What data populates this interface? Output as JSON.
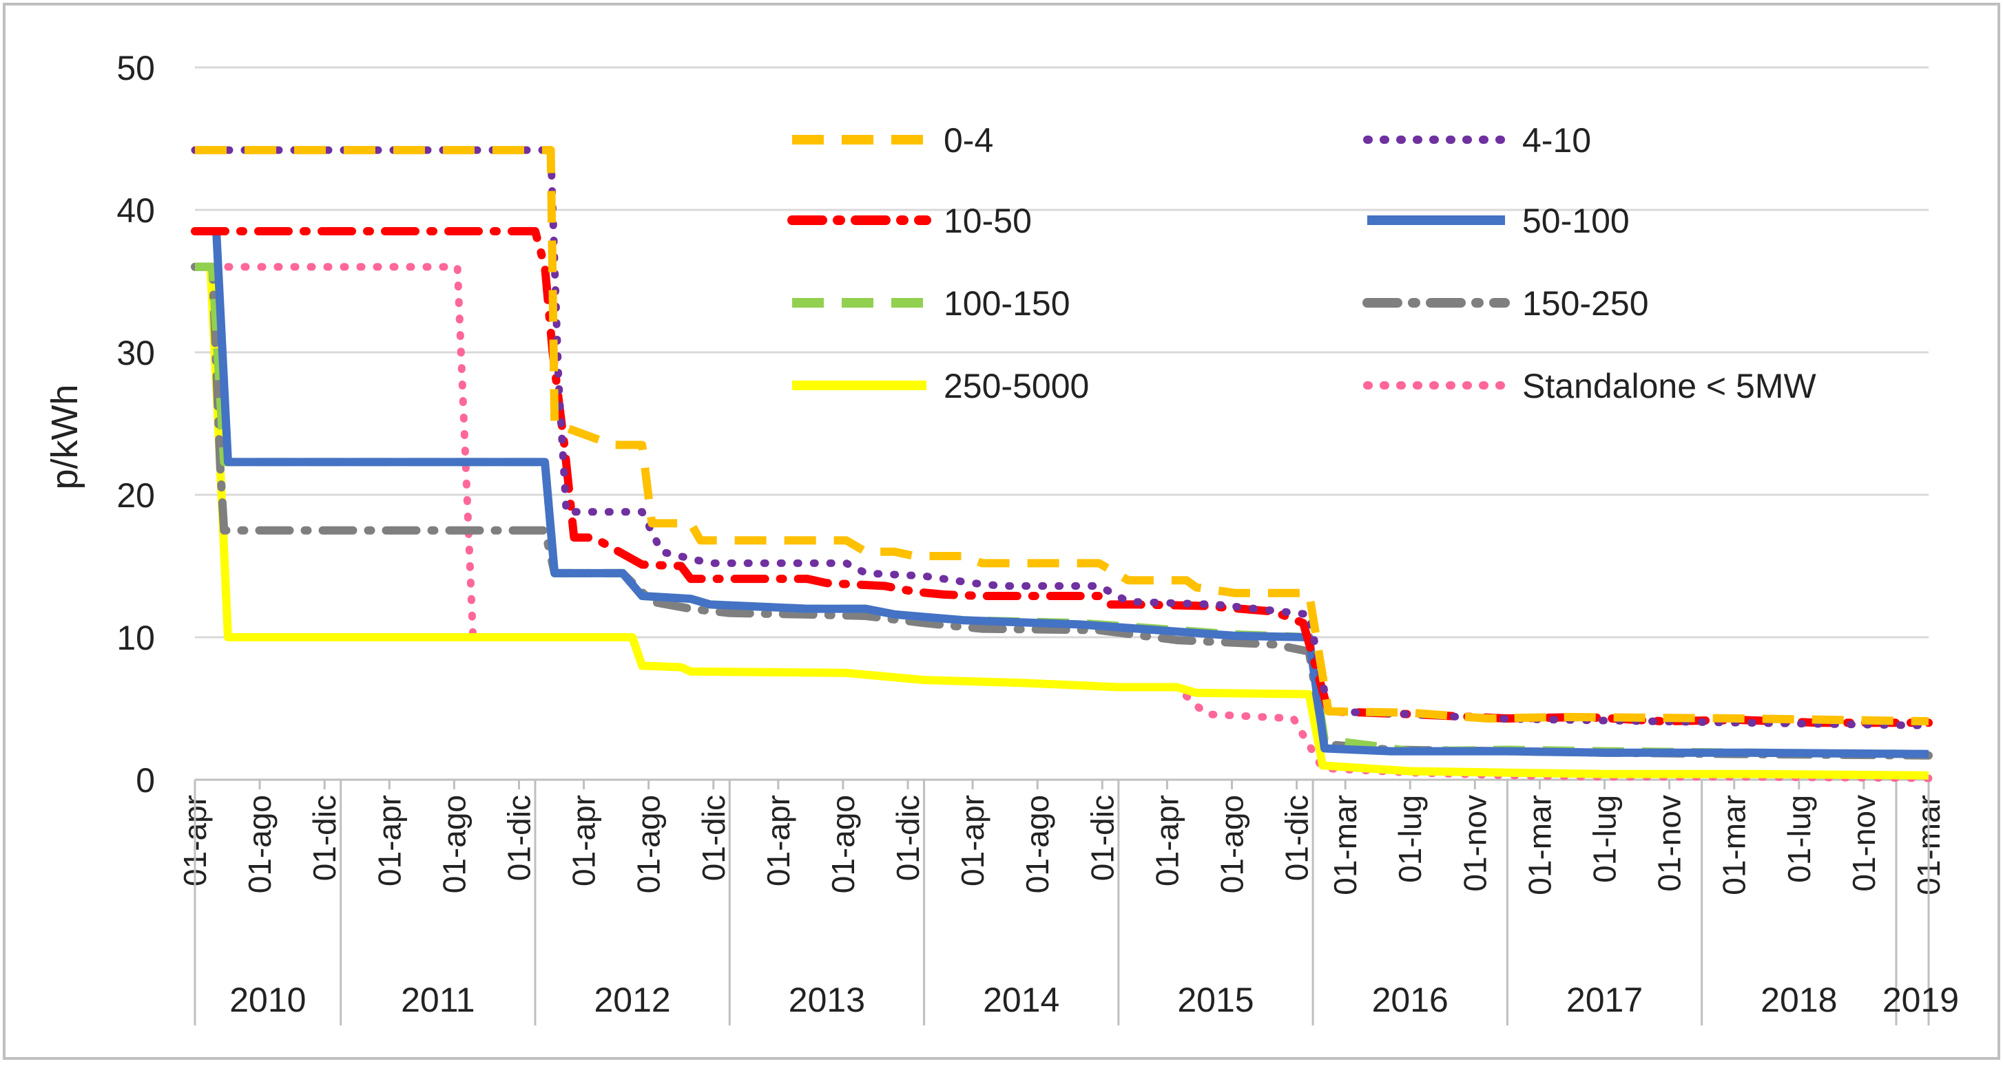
{
  "chart_data": {
    "type": "line",
    "title": "",
    "ylabel": "p/kWh",
    "xlabel": "",
    "ylim": [
      0,
      50
    ],
    "yticks": [
      0,
      10,
      20,
      30,
      40,
      50
    ],
    "grid": true,
    "legend_position": "top-right, two columns",
    "x_time_range": [
      2010.25,
      2019.1667
    ],
    "x_tick_labels": [
      {
        "label": "01-apr",
        "t": 2010.25
      },
      {
        "label": "01-ago",
        "t": 2010.5833
      },
      {
        "label": "01-dic",
        "t": 2010.9167
      },
      {
        "label": "01-apr",
        "t": 2011.25
      },
      {
        "label": "01-ago",
        "t": 2011.5833
      },
      {
        "label": "01-dic",
        "t": 2011.9167
      },
      {
        "label": "01-apr",
        "t": 2012.25
      },
      {
        "label": "01-ago",
        "t": 2012.5833
      },
      {
        "label": "01-dic",
        "t": 2012.9167
      },
      {
        "label": "01-apr",
        "t": 2013.25
      },
      {
        "label": "01-ago",
        "t": 2013.5833
      },
      {
        "label": "01-dic",
        "t": 2013.9167
      },
      {
        "label": "01-apr",
        "t": 2014.25
      },
      {
        "label": "01-ago",
        "t": 2014.5833
      },
      {
        "label": "01-dic",
        "t": 2014.9167
      },
      {
        "label": "01-apr",
        "t": 2015.25
      },
      {
        "label": "01-ago",
        "t": 2015.5833
      },
      {
        "label": "01-dic",
        "t": 2015.9167
      },
      {
        "label": "01-mar",
        "t": 2016.1667
      },
      {
        "label": "01-lug",
        "t": 2016.5
      },
      {
        "label": "01-nov",
        "t": 2016.8333
      },
      {
        "label": "01-mar",
        "t": 2017.1667
      },
      {
        "label": "01-lug",
        "t": 2017.5
      },
      {
        "label": "01-nov",
        "t": 2017.8333
      },
      {
        "label": "01-mar",
        "t": 2018.1667
      },
      {
        "label": "01-lug",
        "t": 2018.5
      },
      {
        "label": "01-nov",
        "t": 2018.8333
      },
      {
        "label": "01-mar",
        "t": 2019.1667
      }
    ],
    "year_groups": [
      {
        "label": "2010",
        "start": 2010.25,
        "end": 2011.0
      },
      {
        "label": "2011",
        "start": 2011.0,
        "end": 2012.0
      },
      {
        "label": "2012",
        "start": 2012.0,
        "end": 2013.0
      },
      {
        "label": "2013",
        "start": 2013.0,
        "end": 2014.0
      },
      {
        "label": "2014",
        "start": 2014.0,
        "end": 2015.0
      },
      {
        "label": "2015",
        "start": 2015.0,
        "end": 2016.0
      },
      {
        "label": "2016",
        "start": 2016.0,
        "end": 2017.0
      },
      {
        "label": "2017",
        "start": 2017.0,
        "end": 2018.0
      },
      {
        "label": "2018",
        "start": 2018.0,
        "end": 2019.0
      },
      {
        "label": "2019",
        "start": 2019.0,
        "end": 2019.1667
      }
    ],
    "series": [
      {
        "name": "0-4",
        "color": "#FFC000",
        "style": "long-dash",
        "points": [
          [
            2010.25,
            44.2
          ],
          [
            2012.08,
            44.2
          ],
          [
            2012.1,
            25.0
          ],
          [
            2012.4,
            23.5
          ],
          [
            2012.55,
            23.5
          ],
          [
            2012.6,
            18.0
          ],
          [
            2012.8,
            18.0
          ],
          [
            2012.85,
            16.8
          ],
          [
            2013.6,
            16.8
          ],
          [
            2013.7,
            16.0
          ],
          [
            2013.85,
            16.0
          ],
          [
            2013.95,
            15.7
          ],
          [
            2014.2,
            15.7
          ],
          [
            2014.3,
            15.2
          ],
          [
            2014.9,
            15.2
          ],
          [
            2015.05,
            14.0
          ],
          [
            2015.35,
            14.0
          ],
          [
            2015.4,
            13.5
          ],
          [
            2015.6,
            13.1
          ],
          [
            2015.98,
            13.1
          ],
          [
            2016.08,
            4.8
          ],
          [
            2016.5,
            4.7
          ],
          [
            2016.9,
            4.3
          ],
          [
            2017.3,
            4.4
          ],
          [
            2018.2,
            4.3
          ],
          [
            2019.1667,
            4.1
          ]
        ]
      },
      {
        "name": "4-10",
        "color": "#7030A0",
        "style": "dotted",
        "points": [
          [
            2010.25,
            44.2
          ],
          [
            2012.08,
            44.2
          ],
          [
            2012.12,
            28.0
          ],
          [
            2012.16,
            18.8
          ],
          [
            2012.55,
            18.8
          ],
          [
            2012.65,
            16.0
          ],
          [
            2012.9,
            15.2
          ],
          [
            2013.6,
            15.2
          ],
          [
            2013.7,
            14.5
          ],
          [
            2014.0,
            14.3
          ],
          [
            2014.25,
            13.8
          ],
          [
            2014.4,
            13.6
          ],
          [
            2014.9,
            13.6
          ],
          [
            2015.05,
            12.5
          ],
          [
            2015.5,
            12.3
          ],
          [
            2015.98,
            11.6
          ],
          [
            2016.08,
            4.8
          ],
          [
            2016.5,
            4.6
          ],
          [
            2016.9,
            4.3
          ],
          [
            2017.3,
            4.2
          ],
          [
            2018.2,
            4.0
          ],
          [
            2019.1667,
            3.8
          ]
        ]
      },
      {
        "name": "10-50",
        "color": "#FF0000",
        "style": "dash-dot",
        "points": [
          [
            2010.25,
            38.5
          ],
          [
            2012.0,
            38.5
          ],
          [
            2012.05,
            36.0
          ],
          [
            2012.09,
            30.0
          ],
          [
            2012.15,
            23.5
          ],
          [
            2012.2,
            17.0
          ],
          [
            2012.3,
            17.0
          ],
          [
            2012.55,
            15.1
          ],
          [
            2012.75,
            15.0
          ],
          [
            2012.8,
            14.1
          ],
          [
            2013.4,
            14.1
          ],
          [
            2013.5,
            13.8
          ],
          [
            2013.8,
            13.6
          ],
          [
            2013.95,
            13.2
          ],
          [
            2014.1,
            13.0
          ],
          [
            2014.3,
            12.9
          ],
          [
            2014.9,
            12.9
          ],
          [
            2014.96,
            12.3
          ],
          [
            2015.1,
            12.3
          ],
          [
            2015.45,
            12.2
          ],
          [
            2015.8,
            11.8
          ],
          [
            2015.95,
            11.0
          ],
          [
            2016.08,
            4.8
          ],
          [
            2016.5,
            4.6
          ],
          [
            2017.0,
            4.3
          ],
          [
            2017.4,
            4.4
          ],
          [
            2017.8,
            4.1
          ],
          [
            2018.2,
            4.2
          ],
          [
            2018.6,
            4.0
          ],
          [
            2019.1667,
            4.0
          ]
        ]
      },
      {
        "name": "50-100",
        "color": "#4472C4",
        "style": "solid",
        "points": [
          [
            2010.25,
            38.5
          ],
          [
            2010.36,
            38.5
          ],
          [
            2010.42,
            22.3
          ],
          [
            2012.05,
            22.3
          ],
          [
            2012.1,
            14.5
          ],
          [
            2012.45,
            14.5
          ],
          [
            2012.55,
            12.9
          ],
          [
            2012.8,
            12.7
          ],
          [
            2012.9,
            12.3
          ],
          [
            2013.4,
            12.0
          ],
          [
            2013.7,
            12.0
          ],
          [
            2013.85,
            11.6
          ],
          [
            2014.2,
            11.2
          ],
          [
            2014.8,
            10.9
          ],
          [
            2015.3,
            10.4
          ],
          [
            2015.6,
            10.1
          ],
          [
            2015.98,
            10.0
          ],
          [
            2016.06,
            2.2
          ],
          [
            2016.4,
            2.0
          ],
          [
            2017.0,
            2.0
          ],
          [
            2017.5,
            1.9
          ],
          [
            2018.2,
            1.9
          ],
          [
            2019.1667,
            1.8
          ]
        ]
      },
      {
        "name": "100-150",
        "color": "#92D050",
        "style": "long-dash",
        "points": [
          [
            2010.25,
            36.0
          ],
          [
            2010.34,
            36.0
          ],
          [
            2010.4,
            22.3
          ],
          [
            2012.05,
            22.3
          ],
          [
            2012.1,
            14.5
          ],
          [
            2012.45,
            14.5
          ],
          [
            2012.55,
            12.9
          ],
          [
            2012.8,
            12.7
          ],
          [
            2012.9,
            12.3
          ],
          [
            2013.4,
            12.0
          ],
          [
            2013.7,
            12.0
          ],
          [
            2013.85,
            11.6
          ],
          [
            2014.2,
            11.2
          ],
          [
            2014.8,
            11.0
          ],
          [
            2015.3,
            10.5
          ],
          [
            2015.6,
            10.2
          ],
          [
            2015.98,
            10.0
          ],
          [
            2016.06,
            2.8
          ],
          [
            2016.3,
            2.4
          ],
          [
            2016.5,
            2.0
          ],
          [
            2017.0,
            2.1
          ],
          [
            2017.5,
            2.0
          ],
          [
            2018.2,
            1.9
          ],
          [
            2019.1667,
            1.8
          ]
        ]
      },
      {
        "name": "150-250",
        "color": "#7F7F7F",
        "style": "dash-dot",
        "points": [
          [
            2010.25,
            36.0
          ],
          [
            2010.34,
            36.0
          ],
          [
            2010.38,
            22.0
          ],
          [
            2010.4,
            17.5
          ],
          [
            2012.05,
            17.5
          ],
          [
            2012.1,
            14.5
          ],
          [
            2012.45,
            14.5
          ],
          [
            2012.6,
            12.5
          ],
          [
            2012.8,
            12.0
          ],
          [
            2013.0,
            11.7
          ],
          [
            2013.4,
            11.6
          ],
          [
            2013.7,
            11.5
          ],
          [
            2014.0,
            11.0
          ],
          [
            2014.3,
            10.6
          ],
          [
            2014.9,
            10.5
          ],
          [
            2015.3,
            9.8
          ],
          [
            2015.8,
            9.5
          ],
          [
            2015.98,
            9.0
          ],
          [
            2016.06,
            2.5
          ],
          [
            2016.4,
            2.1
          ],
          [
            2017.0,
            2.0
          ],
          [
            2017.5,
            1.9
          ],
          [
            2018.2,
            1.8
          ],
          [
            2019.1667,
            1.7
          ]
        ]
      },
      {
        "name": "250-5000",
        "color": "#FFFF00",
        "style": "solid",
        "points": [
          [
            2010.25,
            36.0
          ],
          [
            2010.33,
            36.0
          ],
          [
            2010.38,
            22.0
          ],
          [
            2010.42,
            10.0
          ],
          [
            2012.5,
            10.0
          ],
          [
            2012.55,
            8.0
          ],
          [
            2012.75,
            7.9
          ],
          [
            2012.8,
            7.6
          ],
          [
            2013.6,
            7.5
          ],
          [
            2014.0,
            7.0
          ],
          [
            2014.5,
            6.8
          ],
          [
            2015.0,
            6.5
          ],
          [
            2015.3,
            6.5
          ],
          [
            2015.4,
            6.1
          ],
          [
            2015.98,
            6.0
          ],
          [
            2016.05,
            1.0
          ],
          [
            2016.5,
            0.6
          ],
          [
            2017.0,
            0.5
          ],
          [
            2017.5,
            0.4
          ],
          [
            2018.2,
            0.4
          ],
          [
            2019.1667,
            0.3
          ]
        ]
      },
      {
        "name": "Standalone < 5MW",
        "color": "#FF6699",
        "style": "dotted",
        "points": [
          [
            2010.25,
            36.0
          ],
          [
            2011.6,
            36.0
          ],
          [
            2011.68,
            10.0
          ],
          [
            2012.5,
            10.0
          ],
          [
            2012.55,
            8.0
          ],
          [
            2012.75,
            7.9
          ],
          [
            2012.8,
            7.6
          ],
          [
            2013.6,
            7.5
          ],
          [
            2014.0,
            7.0
          ],
          [
            2014.5,
            6.8
          ],
          [
            2015.0,
            6.5
          ],
          [
            2015.3,
            6.5
          ],
          [
            2015.45,
            4.6
          ],
          [
            2015.9,
            4.3
          ],
          [
            2016.05,
            0.8
          ],
          [
            2016.5,
            0.5
          ],
          [
            2017.0,
            0.3
          ],
          [
            2017.5,
            0.2
          ],
          [
            2018.2,
            0.2
          ],
          [
            2019.1667,
            0.1
          ]
        ]
      }
    ]
  }
}
